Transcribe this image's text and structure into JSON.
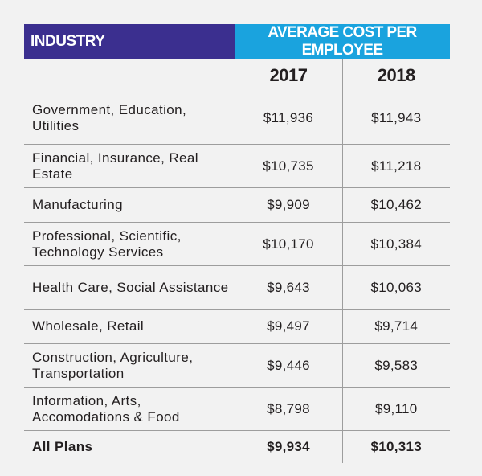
{
  "chart_data": {
    "type": "table",
    "header": {
      "industry": "INDUSTRY",
      "group": "AVERAGE COST PER EMPLOYEE"
    },
    "columns": [
      "2017",
      "2018"
    ],
    "rows": [
      {
        "industry": "Government, Education, Utilities",
        "values": [
          "$11,936",
          "$11,943"
        ]
      },
      {
        "industry": "Financial, Insurance, Real Estate",
        "values": [
          "$10,735",
          "$11,218"
        ]
      },
      {
        "industry": "Manufacturing",
        "values": [
          "$9,909",
          "$10,462"
        ]
      },
      {
        "industry": "Professional, Scientific, Technology Services",
        "values": [
          "$10,170",
          "$10,384"
        ]
      },
      {
        "industry": "Health Care, Social Assistance",
        "values": [
          "$9,643",
          "$10,063"
        ]
      },
      {
        "industry": "Wholesale, Retail",
        "values": [
          "$9,497",
          "$9,714"
        ]
      },
      {
        "industry": "Construction, Agriculture, Transportation",
        "values": [
          "$9,446",
          "$9,583"
        ]
      },
      {
        "industry": "Information, Arts, Accomodations & Food",
        "values": [
          "$8,798",
          "$9,110"
        ]
      }
    ],
    "total": {
      "industry": "All Plans",
      "values": [
        "$9,934",
        "$10,313"
      ]
    }
  },
  "colors": {
    "industry_header_bg": "#3b2f8f",
    "cost_header_bg": "#1aa3de",
    "page_bg": "#f2f2f2",
    "rule": "#9d9d9d"
  }
}
